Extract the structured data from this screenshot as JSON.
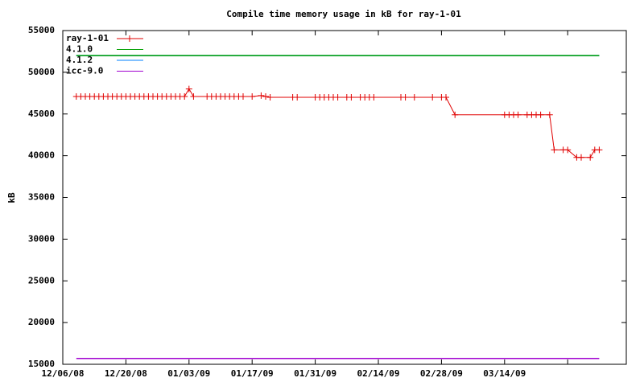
{
  "chart_data": {
    "type": "line",
    "title": "Compile time memory usage in kB for ray-1-01",
    "y_label": "kB",
    "xlim": [
      "12/06/08",
      "04/10/09"
    ],
    "xticks": [
      "12/06/08",
      "12/20/08",
      "01/03/09",
      "01/17/09",
      "01/31/09",
      "02/14/09",
      "02/28/09",
      "03/14/09",
      {
        "value": "03/28/09",
        "label": null
      }
    ],
    "ylim": [
      15000,
      55000
    ],
    "yticks": [
      15000,
      20000,
      25000,
      30000,
      35000,
      40000,
      45000,
      50000,
      55000
    ],
    "legend": "top-left",
    "series": [
      {
        "name": "ray-1-01",
        "color": "#e00000",
        "marker": "+",
        "x": [
          "12/09/08",
          "12/10/08",
          "12/11/08",
          "12/12/08",
          "12/13/08",
          "12/14/08",
          "12/15/08",
          "12/16/08",
          "12/17/08",
          "12/18/08",
          "12/19/08",
          "12/20/08",
          "12/21/08",
          "12/22/08",
          "12/23/08",
          "12/24/08",
          "12/25/08",
          "12/26/08",
          "12/27/08",
          "12/28/08",
          "12/29/08",
          "12/30/08",
          "12/31/08",
          "01/01/09",
          "01/02/09",
          "01/03/09",
          "01/04/09",
          "01/07/09",
          "01/08/09",
          "01/09/09",
          "01/10/09",
          "01/11/09",
          "01/12/09",
          "01/13/09",
          "01/14/09",
          "01/15/09",
          "01/17/09",
          "01/19/09",
          "01/20/09",
          "01/21/09",
          "01/26/09",
          "01/27/09",
          "01/31/09",
          "02/01/09",
          "02/02/09",
          "02/03/09",
          "02/04/09",
          "02/05/09",
          "02/07/09",
          "02/08/09",
          "02/10/09",
          "02/11/09",
          "02/12/09",
          "02/13/09",
          "02/19/09",
          "02/20/09",
          "02/22/09",
          "02/26/09",
          "02/28/09",
          "03/01/09",
          "03/03/09",
          "03/14/09",
          "03/15/09",
          "03/16/09",
          "03/17/09",
          "03/19/09",
          "03/20/09",
          "03/21/09",
          "03/22/09",
          "03/24/09",
          "03/25/09",
          "03/27/09",
          "03/28/09",
          "03/30/09",
          "03/31/09",
          "04/02/09",
          "04/03/09",
          "04/04/09"
        ],
        "values": [
          47100,
          47100,
          47100,
          47100,
          47100,
          47100,
          47100,
          47100,
          47100,
          47100,
          47100,
          47100,
          47100,
          47100,
          47100,
          47100,
          47100,
          47100,
          47100,
          47100,
          47100,
          47100,
          47100,
          47100,
          47100,
          48000,
          47100,
          47100,
          47100,
          47100,
          47100,
          47100,
          47100,
          47100,
          47100,
          47100,
          47100,
          47200,
          47100,
          47000,
          47000,
          47000,
          47000,
          47000,
          47000,
          47000,
          47000,
          47000,
          47000,
          47000,
          47000,
          47000,
          47000,
          47000,
          47000,
          47000,
          47000,
          47000,
          47000,
          47000,
          44900,
          44900,
          44900,
          44900,
          44900,
          44900,
          44900,
          44900,
          44900,
          44900,
          40700,
          40700,
          40700,
          39800,
          39800,
          39800,
          40700,
          40700
        ]
      },
      {
        "name": "4.1.0",
        "color": "#00a000",
        "x": [
          "12/09/08",
          "04/04/09"
        ],
        "values": [
          52000,
          52000
        ]
      },
      {
        "name": "4.1.2",
        "color": "#0080ff",
        "x": [
          "12/09/08",
          "04/04/09"
        ],
        "values": [
          52000,
          52000
        ]
      },
      {
        "name": "icc-9.0",
        "color": "#a000d0",
        "x": [
          "12/09/08",
          "04/04/09"
        ],
        "values": [
          15700,
          15700
        ]
      }
    ]
  }
}
